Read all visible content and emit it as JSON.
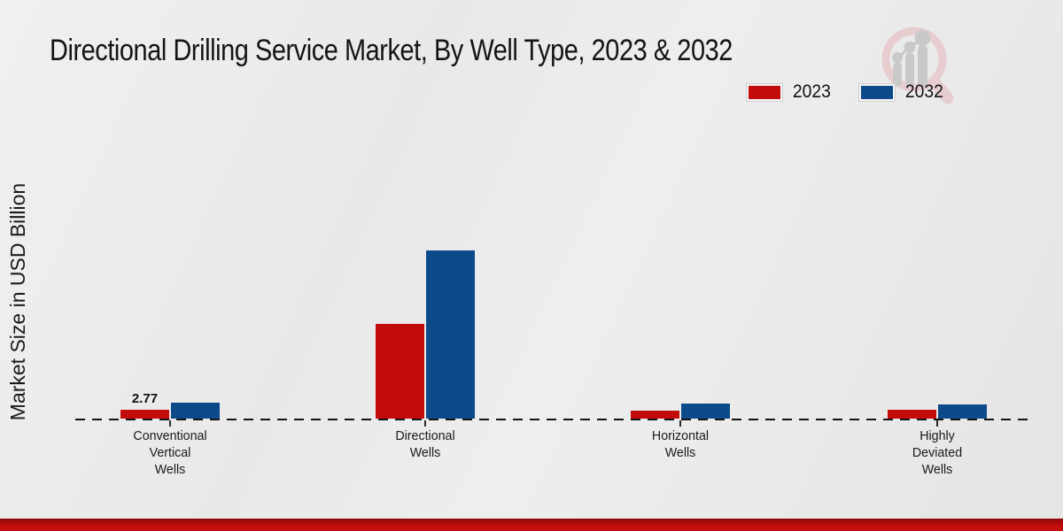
{
  "title": "Directional Drilling Service Market, By Well Type, 2023 & 2032",
  "ylabel": "Market Size in USD Billion",
  "colors": {
    "series_2023": "#c20b0b",
    "series_2032": "#0d4a8a",
    "background": "#eaeaea",
    "banner": "#c20c0c",
    "logo_pink": "#e7cdd0",
    "logo_gray": "#c9c9c9"
  },
  "legend": {
    "items": [
      {
        "label": "2023",
        "color": "#c20b0b"
      },
      {
        "label": "2032",
        "color": "#0d4a8a"
      }
    ]
  },
  "chart_data": {
    "type": "bar",
    "title": "Directional Drilling Service Market, By Well Type, 2023 & 2032",
    "xlabel": "",
    "ylabel": "Market Size in USD Billion",
    "categories": [
      "Conventional\nVertical\nWells",
      "Directional\nWells",
      "Horizontal\nWells",
      "Highly\nDeviated\nWells"
    ],
    "series": [
      {
        "name": "2023",
        "color": "#c20b0b",
        "values": [
          2.77,
          27.2,
          2.6,
          2.7
        ]
      },
      {
        "name": "2032",
        "color": "#0d4a8a",
        "values": [
          4.8,
          48.1,
          4.5,
          4.3
        ]
      }
    ],
    "ylim": [
      0,
      55
    ],
    "grid": false,
    "axis_style": "dashed-baseline-only",
    "legend_position": "top-right",
    "data_labels": [
      {
        "series": "2023",
        "category_index": 0,
        "value": "2.77"
      }
    ]
  }
}
